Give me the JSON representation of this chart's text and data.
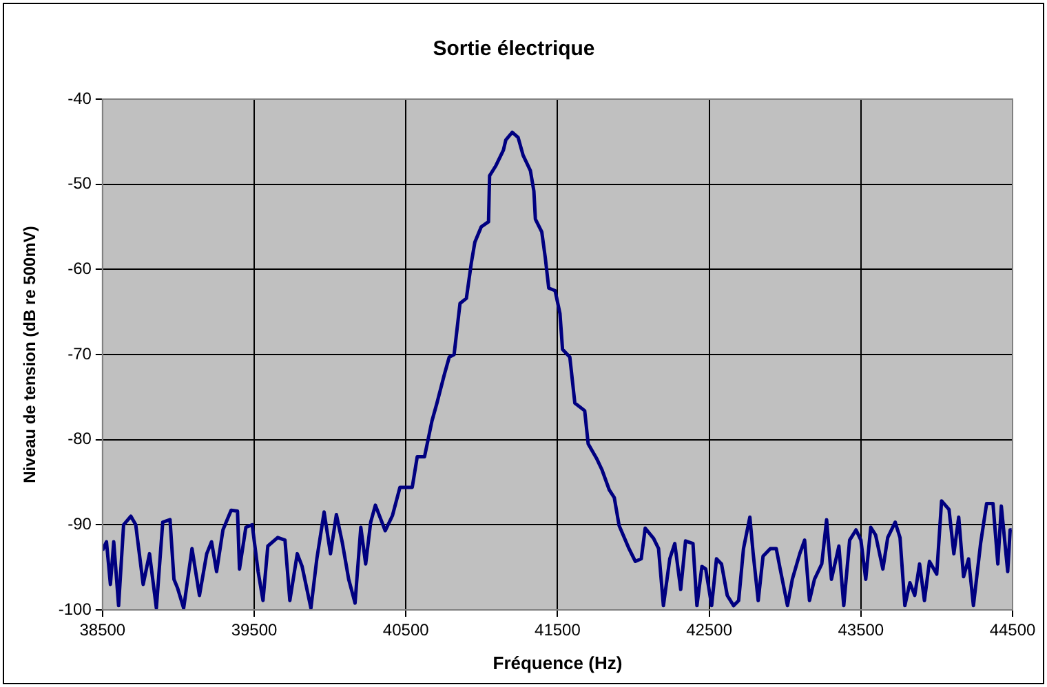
{
  "chart_data": {
    "type": "line",
    "title": "Sortie électrique",
    "xlabel": "Fréquence (Hz)",
    "ylabel": "Niveau de tension (dB re 500mV)",
    "xlim": [
      38500,
      44500
    ],
    "xticks": [
      38500,
      39500,
      40500,
      41500,
      42500,
      43500,
      44500
    ],
    "ylim": [
      -100,
      -40
    ],
    "yticks": [
      -100,
      -90,
      -80,
      -70,
      -60,
      -50,
      -40
    ],
    "grid": true,
    "legend": false,
    "marker": "none",
    "line_style": "solid",
    "series": [
      {
        "color": "#000080",
        "x": [
          38500,
          38526,
          38552,
          38574,
          38606,
          38639,
          38687,
          38719,
          38768,
          38810,
          38855,
          38897,
          38945,
          38971,
          38994,
          39035,
          39090,
          39139,
          39187,
          39219,
          39252,
          39294,
          39348,
          39390,
          39403,
          39445,
          39487,
          39526,
          39558,
          39590,
          39655,
          39703,
          39735,
          39784,
          39816,
          39874,
          39913,
          39961,
          40003,
          40042,
          40081,
          40123,
          40165,
          40203,
          40235,
          40268,
          40299,
          40364,
          40412,
          40461,
          40510,
          40542,
          40575,
          40623,
          40672,
          40705,
          40753,
          40786,
          40818,
          40857,
          40899,
          40932,
          40955,
          40997,
          41045,
          41052,
          41094,
          41143,
          41159,
          41201,
          41240,
          41273,
          41321,
          41344,
          41354,
          41396,
          41419,
          41442,
          41484,
          41516,
          41533,
          41581,
          41614,
          41679,
          41702,
          41760,
          41792,
          41841,
          41874,
          41906,
          41971,
          42013,
          42052,
          42078,
          42133,
          42166,
          42198,
          42240,
          42273,
          42312,
          42344,
          42393,
          42419,
          42452,
          42477,
          42516,
          42548,
          42581,
          42619,
          42661,
          42694,
          42726,
          42768,
          42790,
          42823,
          42855,
          42903,
          42942,
          42968,
          43016,
          43048,
          43097,
          43129,
          43161,
          43194,
          43242,
          43274,
          43306,
          43355,
          43387,
          43426,
          43468,
          43500,
          43532,
          43565,
          43597,
          43645,
          43677,
          43726,
          43758,
          43790,
          43823,
          43855,
          43887,
          43919,
          43952,
          44000,
          44032,
          44081,
          44113,
          44145,
          44177,
          44210,
          44242,
          44290,
          44329,
          44371,
          44403,
          44426,
          44468,
          44484,
          44494
        ],
        "values": [
          -93,
          -92,
          -97,
          -92,
          -99.5,
          -90,
          -89,
          -90,
          -97,
          -93.4,
          -99.8,
          -89.7,
          -89.4,
          -96.4,
          -97.4,
          -99.8,
          -92.8,
          -98.3,
          -93.4,
          -92,
          -95.5,
          -90.6,
          -88.3,
          -88.4,
          -95.2,
          -90.3,
          -90,
          -95.5,
          -98.9,
          -92.5,
          -91.5,
          -91.8,
          -98.9,
          -93.4,
          -94.9,
          -99.8,
          -94,
          -88.5,
          -93.4,
          -88.8,
          -92.1,
          -96.4,
          -99.2,
          -90.3,
          -94.6,
          -89.7,
          -87.7,
          -90.7,
          -88.9,
          -85.6,
          -85.6,
          -85.6,
          -82,
          -82,
          -77.8,
          -75.7,
          -72.4,
          -70.3,
          -70,
          -64,
          -63.4,
          -59.2,
          -56.8,
          -55,
          -54.4,
          -49,
          -47.8,
          -46,
          -44.8,
          -43.9,
          -44.5,
          -46.6,
          -48.4,
          -50.8,
          -54.1,
          -55.6,
          -58.6,
          -62.2,
          -62.5,
          -65.2,
          -69.4,
          -70.3,
          -75.7,
          -76.6,
          -80.5,
          -82.3,
          -83.5,
          -85.9,
          -86.8,
          -90.1,
          -92.8,
          -94.3,
          -94,
          -90.4,
          -91.6,
          -92.8,
          -99.5,
          -94,
          -92.2,
          -97.6,
          -91.9,
          -92.2,
          -99.5,
          -94.9,
          -95.2,
          -99.5,
          -94,
          -94.6,
          -98.3,
          -99.5,
          -98.9,
          -92.8,
          -89.1,
          -93.4,
          -98.9,
          -93.7,
          -92.8,
          -92.8,
          -95.2,
          -99.5,
          -96.4,
          -93.4,
          -91.8,
          -98.9,
          -96.4,
          -94.6,
          -89.4,
          -96.4,
          -92.5,
          -99.5,
          -91.8,
          -90.6,
          -91.8,
          -96.4,
          -90.3,
          -91.2,
          -95.2,
          -91.5,
          -89.7,
          -91.5,
          -99.5,
          -96.8,
          -98.3,
          -94.6,
          -98.9,
          -94.3,
          -95.8,
          -87.2,
          -88.2,
          -93.4,
          -89.1,
          -96.1,
          -94,
          -99.5,
          -92.1,
          -87.5,
          -87.5,
          -94.6,
          -87.8,
          -95.5,
          -90.6,
          -90.6
        ]
      }
    ]
  }
}
